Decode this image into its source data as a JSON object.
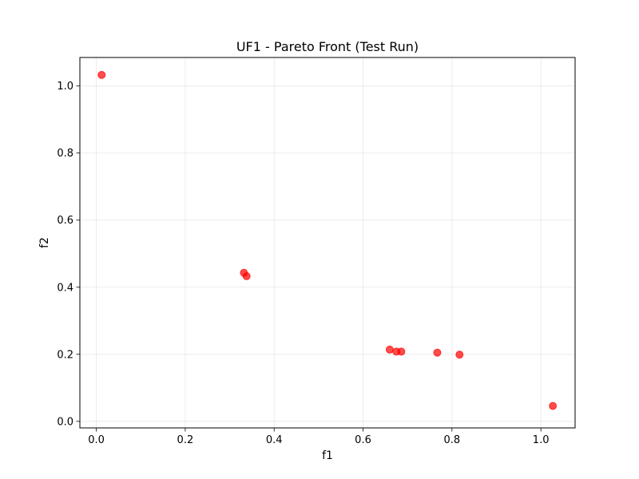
{
  "chart_data": {
    "type": "scatter",
    "title": "UF1 - Pareto Front (Test Run)",
    "xlabel": "f1",
    "ylabel": "f2",
    "xlim": [
      -0.037,
      1.077
    ],
    "ylim": [
      -0.0195,
      1.085
    ],
    "xticks": [
      0.0,
      0.2,
      0.4,
      0.6,
      0.8,
      1.0
    ],
    "xtick_labels": [
      "0.0",
      "0.2",
      "0.4",
      "0.6",
      "0.8",
      "1.0"
    ],
    "yticks": [
      0.0,
      0.2,
      0.4,
      0.6,
      0.8,
      1.0
    ],
    "ytick_labels": [
      "0.0",
      "0.2",
      "0.4",
      "0.6",
      "0.8",
      "1.0"
    ],
    "grid": true,
    "marker_color": "#ff0000",
    "marker_alpha": 0.7,
    "points": [
      {
        "x": 0.012,
        "y": 1.033
      },
      {
        "x": 0.332,
        "y": 0.443
      },
      {
        "x": 0.338,
        "y": 0.433
      },
      {
        "x": 0.66,
        "y": 0.214
      },
      {
        "x": 0.675,
        "y": 0.208
      },
      {
        "x": 0.686,
        "y": 0.208
      },
      {
        "x": 0.767,
        "y": 0.205
      },
      {
        "x": 0.817,
        "y": 0.199
      },
      {
        "x": 1.027,
        "y": 0.046
      }
    ]
  }
}
